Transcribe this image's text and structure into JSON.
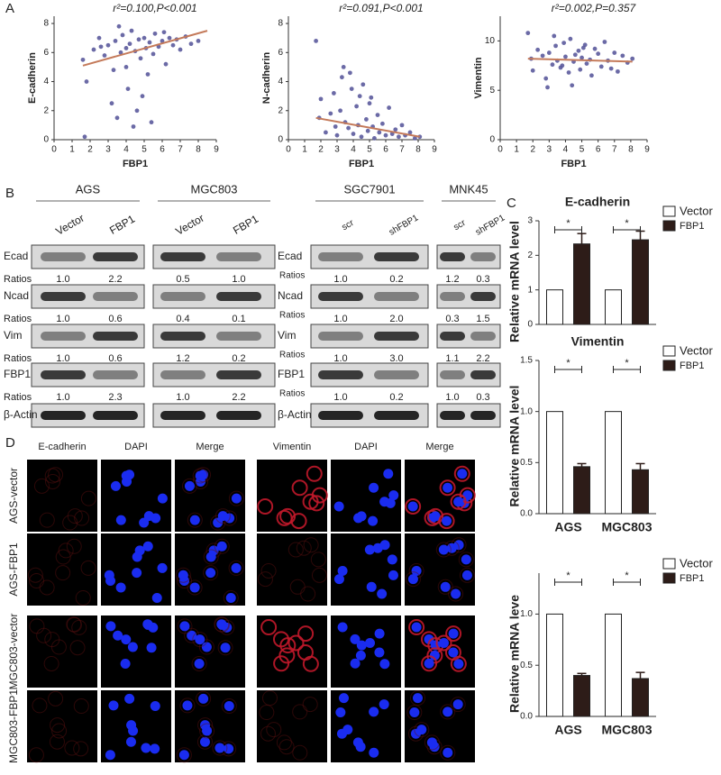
{
  "chart_data": [
    {
      "type": "scatter",
      "annotation": "r²=0.100,P<0.001",
      "xlabel": "FBP1",
      "ylabel": "E-cadherin",
      "color": "#5b5a9c",
      "x": [
        1.6,
        1.8,
        2.2,
        2.5,
        2.8,
        3.0,
        3.2,
        3.4,
        3.5,
        3.7,
        3.8,
        4.0,
        4.1,
        4.2,
        4.3,
        4.5,
        4.6,
        4.7,
        4.8,
        5.0,
        5.1,
        5.2,
        5.3,
        5.5,
        5.6,
        5.8,
        6.0,
        6.2,
        6.4,
        6.6,
        6.8,
        7.0,
        7.3,
        7.6,
        8.0,
        3.3,
        4.4,
        4.9,
        2.6,
        5.4,
        3.6,
        1.7,
        4.0,
        6.1
      ],
      "values": [
        5.5,
        4.0,
        6.2,
        7.0,
        5.8,
        6.5,
        2.5,
        6.8,
        1.5,
        6.0,
        7.2,
        5.0,
        3.5,
        6.6,
        7.5,
        6.1,
        2.0,
        6.9,
        5.6,
        7.0,
        6.3,
        4.5,
        6.7,
        5.9,
        7.3,
        6.4,
        6.8,
        5.2,
        7.0,
        6.5,
        6.9,
        6.2,
        7.1,
        6.6,
        6.8,
        4.8,
        0.9,
        3.0,
        6.4,
        1.2,
        7.8,
        0.2,
        6.3,
        7.4
      ],
      "fit": {
        "x": [
          1.6,
          8.5
        ],
        "values": [
          5.1,
          7.5
        ],
        "color": "#c47a5a"
      },
      "xlim": [
        0,
        9
      ],
      "ylim": [
        0,
        8.5
      ],
      "xticks": [
        0,
        1,
        2,
        3,
        4,
        5,
        6,
        7,
        8,
        9
      ],
      "yticks": [
        0,
        2,
        4,
        6,
        8
      ]
    },
    {
      "type": "scatter",
      "annotation": "r²=0.091,P<0.001",
      "xlabel": "FBP1",
      "ylabel": "N-cadherin",
      "color": "#5b5a9c",
      "x": [
        1.7,
        1.9,
        2.0,
        2.3,
        2.6,
        2.8,
        3.0,
        3.2,
        3.4,
        3.5,
        3.7,
        3.9,
        4.0,
        4.2,
        4.3,
        4.5,
        4.6,
        4.8,
        4.9,
        5.0,
        5.2,
        5.3,
        5.5,
        5.6,
        5.8,
        6.0,
        6.2,
        6.4,
        6.6,
        6.8,
        7.0,
        7.2,
        7.5,
        7.8,
        8.1,
        3.3,
        4.4,
        5.1,
        2.9,
        3.8
      ],
      "values": [
        6.8,
        1.5,
        2.8,
        0.5,
        1.8,
        3.2,
        0.3,
        2.0,
        5.0,
        1.2,
        0.8,
        3.5,
        0.4,
        2.3,
        1.0,
        0.2,
        3.8,
        1.4,
        0.6,
        2.5,
        0.9,
        0.1,
        1.7,
        0.5,
        1.1,
        0.3,
        2.2,
        0.4,
        0.7,
        0.2,
        1.0,
        0.3,
        0.5,
        0.1,
        0.2,
        4.3,
        3.0,
        2.9,
        0.9,
        4.6
      ],
      "fit": {
        "x": [
          1.7,
          8.1
        ],
        "values": [
          1.5,
          0.2
        ],
        "color": "#c47a5a"
      },
      "xlim": [
        0,
        9
      ],
      "ylim": [
        0,
        8.5
      ],
      "xticks": [
        0,
        1,
        2,
        3,
        4,
        5,
        6,
        7,
        8,
        9
      ],
      "yticks": [
        0,
        2,
        4,
        6,
        8
      ]
    },
    {
      "type": "scatter",
      "annotation": "r²=0.002,P=0.357",
      "xlabel": "FBP1",
      "ylabel": "Vimentin",
      "color": "#5b5a9c",
      "x": [
        1.7,
        1.9,
        2.0,
        2.3,
        2.6,
        2.8,
        3.0,
        3.2,
        3.4,
        3.5,
        3.7,
        3.9,
        4.0,
        4.2,
        4.3,
        4.5,
        4.6,
        4.8,
        4.9,
        5.0,
        5.2,
        5.3,
        5.5,
        5.6,
        5.8,
        6.0,
        6.2,
        6.4,
        6.6,
        6.8,
        7.0,
        7.2,
        7.5,
        7.8,
        8.1,
        3.3,
        4.4,
        5.1,
        2.9,
        3.8
      ],
      "values": [
        10.8,
        8.2,
        7.0,
        9.1,
        8.5,
        6.2,
        8.8,
        7.6,
        9.5,
        8.0,
        7.3,
        9.8,
        8.4,
        6.8,
        10.2,
        7.9,
        8.6,
        9.0,
        7.1,
        8.3,
        9.6,
        7.7,
        8.1,
        6.5,
        9.2,
        8.7,
        7.4,
        9.9,
        8.0,
        7.2,
        8.8,
        6.9,
        8.5,
        7.8,
        8.2,
        10.5,
        5.5,
        9.3,
        5.3,
        7.5
      ],
      "fit": {
        "x": [
          1.7,
          8.1
        ],
        "values": [
          8.2,
          7.9
        ],
        "color": "#c47a5a"
      },
      "xlim": [
        0,
        9
      ],
      "ylim": [
        0,
        12.5
      ],
      "xticks": [
        0,
        1,
        2,
        3,
        4,
        5,
        6,
        7,
        8,
        9
      ],
      "yticks": [
        0,
        5,
        10
      ]
    },
    {
      "type": "bar",
      "title": "E-cadherin",
      "ylabel": "Relative mRNA level",
      "categories": [
        null,
        null
      ],
      "series": [
        {
          "name": "Vector",
          "color": "#ffffff",
          "values": [
            1,
            1
          ]
        },
        {
          "name": "FBP1",
          "color": "#2d1c18",
          "values": [
            2.33,
            2.45
          ],
          "errors": [
            0.3,
            0.25
          ]
        }
      ],
      "significance": [
        "*",
        "*"
      ],
      "ylim": [
        0,
        3
      ],
      "yticks": [
        0,
        1,
        2,
        3
      ]
    },
    {
      "type": "bar",
      "title": "Vimentin",
      "ylabel": "Relative mRNA level",
      "categories": [
        "AGS",
        "MGC803"
      ],
      "series": [
        {
          "name": "Vector",
          "color": "#ffffff",
          "values": [
            1,
            1
          ]
        },
        {
          "name": "FBP1",
          "color": "#2d1c18",
          "values": [
            0.46,
            0.43
          ],
          "errors": [
            0.03,
            0.06
          ]
        }
      ],
      "significance": [
        "*",
        "*"
      ],
      "ylim": [
        0,
        1.5
      ],
      "yticks": [
        {
          "value": 0,
          "label": "0.0"
        },
        0.5,
        {
          "value": 1,
          "label": "1.0"
        },
        {
          "value": 1.5,
          "label": "1.5"
        }
      ]
    },
    {
      "type": "bar",
      "ylabel": "Relative mRNA leve",
      "categories": [
        "AGS",
        "MGC803"
      ],
      "series": [
        {
          "name": "Vector",
          "color": "#ffffff",
          "values": [
            1,
            1
          ]
        },
        {
          "name": "FBP1",
          "color": "#2d1c18",
          "values": [
            0.4,
            0.37
          ],
          "errors": [
            0.02,
            0.06
          ]
        }
      ],
      "significance": [
        "*",
        "*"
      ],
      "ylim": [
        0,
        1.4
      ],
      "yticks": [
        {
          "value": 0,
          "label": "0.0"
        },
        0.5,
        {
          "value": 1,
          "label": "1.0"
        }
      ]
    }
  ],
  "panels": {
    "a": "A",
    "b": "B",
    "c": "C",
    "d": "D"
  },
  "blots": {
    "ratio_label": "Ratios",
    "rows": [
      "Ecad",
      "Ncad",
      "Vim",
      "FBP1",
      "β-Actin"
    ],
    "groups": [
      {
        "name": "AGS",
        "lanes": [
          "Vector",
          "FBP1"
        ],
        "ratios": [
          [
            "1.0",
            "2.2"
          ],
          [
            "1.0",
            "0.6"
          ],
          [
            "1.0",
            "0.6"
          ],
          [
            "1.0",
            "2.3"
          ]
        ]
      },
      {
        "name": "MGC803",
        "lanes": [
          "Vector",
          "FBP1"
        ],
        "ratios": [
          [
            "0.5",
            "1.0"
          ],
          [
            "0.4",
            "0.1"
          ],
          [
            "1.2",
            "0.2"
          ],
          [
            "1.0",
            "2.2"
          ]
        ]
      },
      {
        "name": "SGC7901",
        "lanes": [
          "scr",
          "shFBP1"
        ],
        "ratios": [
          [
            "1.0",
            "0.2"
          ],
          [
            "1.0",
            "2.0"
          ],
          [
            "1.0",
            "3.0"
          ],
          [
            "1.0",
            "0.2"
          ]
        ]
      },
      {
        "name": "MNK45",
        "lanes": [
          "scr",
          "shFBP1"
        ],
        "ratios": [
          [
            "1.2",
            "0.3"
          ],
          [
            "0.3",
            "1.5"
          ],
          [
            "1.1",
            "2.2"
          ],
          [
            "1.0",
            "0.3"
          ]
        ]
      }
    ]
  },
  "microscopy": {
    "columns": [
      "E-cadherin",
      "DAPI",
      "Merge",
      "Vimentin",
      "DAPI",
      "Merge"
    ],
    "rows": [
      "AGS-vector",
      "AGS-FBP1",
      "MGC803-vector",
      "MGC803-FBP1"
    ]
  }
}
